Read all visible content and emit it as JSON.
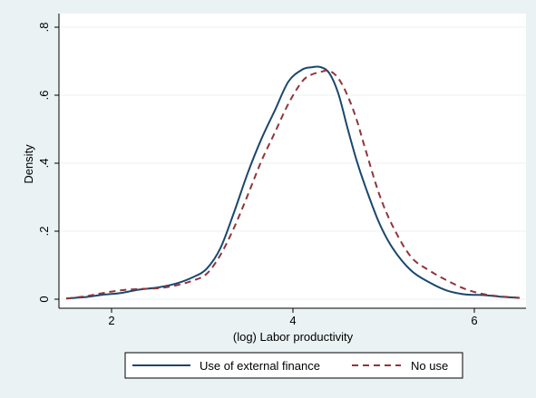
{
  "chart_data": {
    "type": "line",
    "xlabel": "(log) Labor productivity",
    "ylabel": "Density",
    "xlim": [
      1.5,
      6.5
    ],
    "ylim": [
      0,
      0.8
    ],
    "xticks": [
      2,
      4,
      6
    ],
    "xtick_labels": [
      "2",
      "4",
      "6"
    ],
    "yticks": [
      0,
      0.2,
      0.4,
      0.6,
      0.8
    ],
    "ytick_labels": [
      "0",
      ".2",
      ".4",
      ".6",
      ".8"
    ],
    "grid": "horizontal",
    "legend_position": "bottom",
    "series": [
      {
        "name": "Use of external finance",
        "style": "solid",
        "color": "#1a476f",
        "x": [
          1.5,
          1.7,
          1.9,
          2.1,
          2.3,
          2.5,
          2.7,
          2.9,
          3.05,
          3.2,
          3.35,
          3.5,
          3.65,
          3.8,
          3.95,
          4.1,
          4.2,
          4.3,
          4.4,
          4.5,
          4.6,
          4.7,
          4.8,
          4.95,
          5.1,
          5.3,
          5.5,
          5.7,
          5.9,
          6.1,
          6.3,
          6.5
        ],
        "y": [
          0.002,
          0.006,
          0.013,
          0.018,
          0.028,
          0.034,
          0.045,
          0.065,
          0.09,
          0.15,
          0.255,
          0.37,
          0.47,
          0.555,
          0.64,
          0.675,
          0.682,
          0.683,
          0.665,
          0.605,
          0.505,
          0.41,
          0.33,
          0.225,
          0.15,
          0.085,
          0.05,
          0.025,
          0.014,
          0.012,
          0.007,
          0.004
        ]
      },
      {
        "name": "No use",
        "style": "dashed",
        "color": "#90353b",
        "x": [
          1.5,
          1.7,
          1.9,
          2.1,
          2.3,
          2.5,
          2.7,
          2.9,
          3.05,
          3.2,
          3.35,
          3.5,
          3.65,
          3.8,
          3.95,
          4.1,
          4.2,
          4.3,
          4.4,
          4.5,
          4.6,
          4.7,
          4.8,
          4.95,
          5.1,
          5.3,
          5.5,
          5.7,
          5.9,
          6.1,
          6.3,
          6.5
        ],
        "y": [
          0.002,
          0.008,
          0.018,
          0.026,
          0.03,
          0.032,
          0.04,
          0.055,
          0.075,
          0.13,
          0.21,
          0.305,
          0.405,
          0.49,
          0.575,
          0.64,
          0.66,
          0.668,
          0.672,
          0.65,
          0.6,
          0.53,
          0.44,
          0.31,
          0.215,
          0.125,
          0.085,
          0.055,
          0.03,
          0.015,
          0.008,
          0.004
        ]
      }
    ]
  }
}
